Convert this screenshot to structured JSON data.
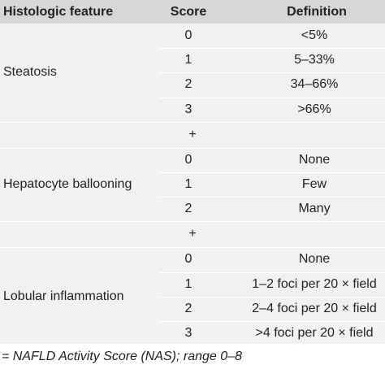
{
  "table": {
    "header": [
      "Histologic feature",
      "Score",
      "Definition"
    ],
    "groups": [
      {
        "feature": "Steatosis",
        "rows": [
          [
            "0",
            "<5%"
          ],
          [
            "1",
            "5–33%"
          ],
          [
            "2",
            "34–66%"
          ],
          [
            "3",
            ">66%"
          ]
        ]
      },
      {
        "feature": "Hepatocyte ballooning",
        "rows": [
          [
            "0",
            "None"
          ],
          [
            "1",
            "Few"
          ],
          [
            "2",
            "Many"
          ]
        ]
      },
      {
        "feature": "Lobular inflammation",
        "rows": [
          [
            "0",
            "None"
          ],
          [
            "1",
            "1–2 foci per 20 × field"
          ],
          [
            "2",
            "2–4 foci per 20 × field"
          ],
          [
            "3",
            ">4 foci per 20 × field"
          ]
        ]
      }
    ],
    "separators": [
      "+",
      "+"
    ],
    "footer": "= NAFLD Activity Score (NAS); range 0–8"
  }
}
